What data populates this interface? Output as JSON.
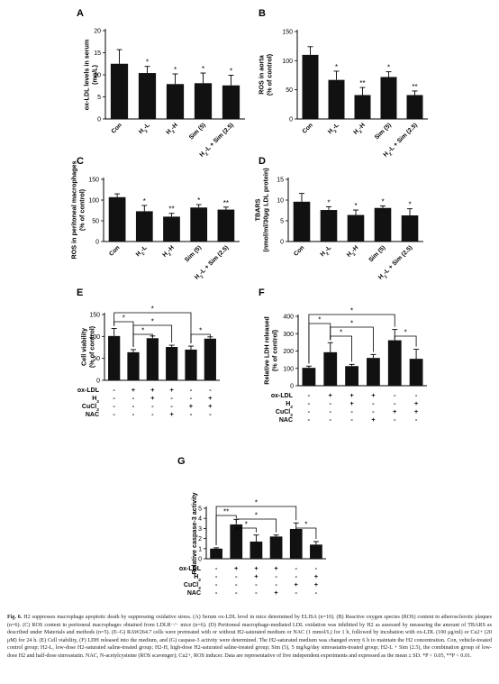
{
  "figure": {
    "caption_label": "Fig. 6.",
    "caption_text": "H2 suppresses macrophage apoptotic death by suppressing oxidative stress. (A) Serum ox-LDL level in mice determined by ELISA (n=10). (B) Reactive oxygen species (ROS) content in atherosclerotic plaques (n=6). (C) ROS content in peritoneal macrophages obtained from LDLR−/− mice (n=6). (D) Peritoneal macrophage-mediated LDL oxidation was inhibited by H2 as assessed by measuring the amount of TBARS as described under Materials and methods (n=5). (E–G) RAW264.7 cells were pretreated with or without H2-saturated medium or NAC (1 mmol/L) for 1 h, followed by incubation with ox-LDL (100 μg/ml) or Cu2+ (20 μM) for 24 h. (E) Cell viability, (F) LDH released into the medium, and (G) caspase-3 activity were determined. The H2-saturated medium was changed every 6 h to maintain the H2 concentration. Con, vehicle-treated control group; H2-L, low-dose H2-saturated saline-treated group; H2-H, high-dose H2-saturated saline-treated group; Sim (5), 5 mg/kg/day simvastatin-treated group; H2-L + Sim (2.5), the combination group of low-dose H2 and half-dose simvastatin. NAC, N-acetylcysteine (ROS scavenger); Cu2+, ROS inducer. Data are representative of five independent experiments and expressed as the mean ± SD. *P < 0.05, **P < 0.01."
  },
  "chart_data": [
    {
      "panel": "A",
      "type": "bar",
      "ylabel": "ox-LDL levels in serum (mg/L)",
      "ylim": [
        0,
        20
      ],
      "yticks": [
        0,
        5,
        10,
        15,
        20
      ],
      "categories": [
        "Con",
        "H2-L",
        "H2-H",
        "Sim (5)",
        "H2-L + Sim (2.5)"
      ],
      "values": [
        12.5,
        10.4,
        7.9,
        8.1,
        7.6
      ],
      "errors": [
        3.2,
        1.5,
        2.3,
        2.3,
        2.3
      ],
      "significance": [
        "",
        "*",
        "*",
        "*",
        "*"
      ]
    },
    {
      "panel": "B",
      "type": "bar",
      "ylabel": "ROS in aorta (% of control)",
      "ylim": [
        0,
        150
      ],
      "yticks": [
        0,
        50,
        100,
        150
      ],
      "categories": [
        "Con",
        "H2-L",
        "H2-H",
        "Sim (5)",
        "H2-L + Sim (2.5)"
      ],
      "values": [
        110,
        67,
        41,
        72,
        41
      ],
      "errors": [
        14,
        15,
        13,
        9,
        7
      ],
      "significance": [
        "",
        "*",
        "**",
        "*",
        "**"
      ]
    },
    {
      "panel": "C",
      "type": "bar",
      "ylabel": "ROS in peritoneal macrophages (% of control)",
      "ylim": [
        0,
        150
      ],
      "yticks": [
        0,
        50,
        100,
        150
      ],
      "categories": [
        "Con",
        "H2-L",
        "H2-H",
        "Sim (5)",
        "H2-L + Sim (2.5)"
      ],
      "values": [
        107,
        73,
        60,
        82,
        77
      ],
      "errors": [
        8,
        14,
        8,
        7,
        6
      ],
      "significance": [
        "",
        "*",
        "**",
        "*",
        "**"
      ]
    },
    {
      "panel": "D",
      "type": "bar",
      "ylabel": "TBARS (nmol/ml/30μg LDL protein)",
      "ylim": [
        0,
        15
      ],
      "yticks": [
        0,
        5,
        10,
        15
      ],
      "categories": [
        "Con",
        "H2-L",
        "H2-H",
        "Sim (5)",
        "H2-L + Sim (2.5)"
      ],
      "values": [
        9.6,
        7.6,
        6.4,
        8.1,
        6.3
      ],
      "errors": [
        2.0,
        0.8,
        1.2,
        0.5,
        1.6
      ],
      "significance": [
        "",
        "*",
        "*",
        "*",
        "*"
      ]
    },
    {
      "panel": "E",
      "type": "bar",
      "ylabel": "Cell viability (% of control)",
      "ylim": [
        0,
        150
      ],
      "yticks": [
        0,
        50,
        100,
        150
      ],
      "values": [
        101,
        64,
        96,
        76,
        70,
        95
      ],
      "errors": [
        17,
        6,
        5,
        4,
        8,
        4
      ],
      "brackets": [
        {
          "from": 0,
          "to": 1,
          "label": "*"
        },
        {
          "from": 1,
          "to": 2,
          "label": "*"
        },
        {
          "from": 1,
          "to": 3,
          "label": "*"
        },
        {
          "from": 0,
          "to": 4,
          "label": "*"
        },
        {
          "from": 4,
          "to": 5,
          "label": "*"
        }
      ],
      "treatment_rows": [
        {
          "label": "ox-LDL",
          "marks": [
            "-",
            "+",
            "+",
            "+",
            "-",
            "-"
          ]
        },
        {
          "label": "H2",
          "marks": [
            "-",
            "-",
            "+",
            "-",
            "-",
            "+"
          ]
        },
        {
          "label": "CuCl2",
          "marks": [
            "-",
            "-",
            "-",
            "-",
            "+",
            "+"
          ]
        },
        {
          "label": "NAC",
          "marks": [
            "-",
            "-",
            "-",
            "+",
            "-",
            "-"
          ]
        }
      ]
    },
    {
      "panel": "F",
      "type": "bar",
      "ylabel": "Relative LDH released (% of control)",
      "ylim": [
        0,
        400
      ],
      "yticks": [
        0,
        100,
        200,
        300,
        400
      ],
      "values": [
        103,
        193,
        113,
        160,
        262,
        155
      ],
      "errors": [
        10,
        55,
        10,
        20,
        62,
        55
      ],
      "brackets": [
        {
          "from": 0,
          "to": 1,
          "label": "*"
        },
        {
          "from": 1,
          "to": 2,
          "label": "*"
        },
        {
          "from": 1,
          "to": 3,
          "label": "*"
        },
        {
          "from": 0,
          "to": 4,
          "label": "*"
        },
        {
          "from": 4,
          "to": 5,
          "label": "*"
        }
      ],
      "treatment_rows": [
        {
          "label": "ox-LDL",
          "marks": [
            "-",
            "+",
            "+",
            "+",
            "-",
            "-"
          ]
        },
        {
          "label": "H2",
          "marks": [
            "-",
            "-",
            "+",
            "-",
            "-",
            "+"
          ]
        },
        {
          "label": "CuCl2",
          "marks": [
            "-",
            "-",
            "-",
            "-",
            "+",
            "+"
          ]
        },
        {
          "label": "NAC",
          "marks": [
            "-",
            "-",
            "-",
            "+",
            "-",
            "-"
          ]
        }
      ]
    },
    {
      "panel": "G",
      "type": "bar",
      "ylabel": "Relative caspase-3 activity",
      "ylim": [
        0,
        5
      ],
      "yticks": [
        0,
        1,
        2,
        3,
        4,
        5
      ],
      "values": [
        1.0,
        3.4,
        1.7,
        2.2,
        2.95,
        1.4
      ],
      "errors": [
        0.08,
        0.5,
        0.65,
        0.15,
        0.6,
        0.3
      ],
      "brackets": [
        {
          "from": 0,
          "to": 1,
          "label": "**"
        },
        {
          "from": 1,
          "to": 2,
          "label": "*"
        },
        {
          "from": 1,
          "to": 3,
          "label": "*"
        },
        {
          "from": 0,
          "to": 4,
          "label": "*"
        },
        {
          "from": 4,
          "to": 5,
          "label": "*"
        }
      ],
      "treatment_rows": [
        {
          "label": "ox-LDL",
          "marks": [
            "-",
            "+",
            "+",
            "+",
            "-",
            "-"
          ]
        },
        {
          "label": "H2",
          "marks": [
            "-",
            "-",
            "+",
            "-",
            "-",
            "+"
          ]
        },
        {
          "label": "CuCl2",
          "marks": [
            "-",
            "-",
            "-",
            "-",
            "+",
            "+"
          ]
        },
        {
          "label": "NAC",
          "marks": [
            "-",
            "-",
            "-",
            "+",
            "-",
            "-"
          ]
        }
      ]
    }
  ]
}
